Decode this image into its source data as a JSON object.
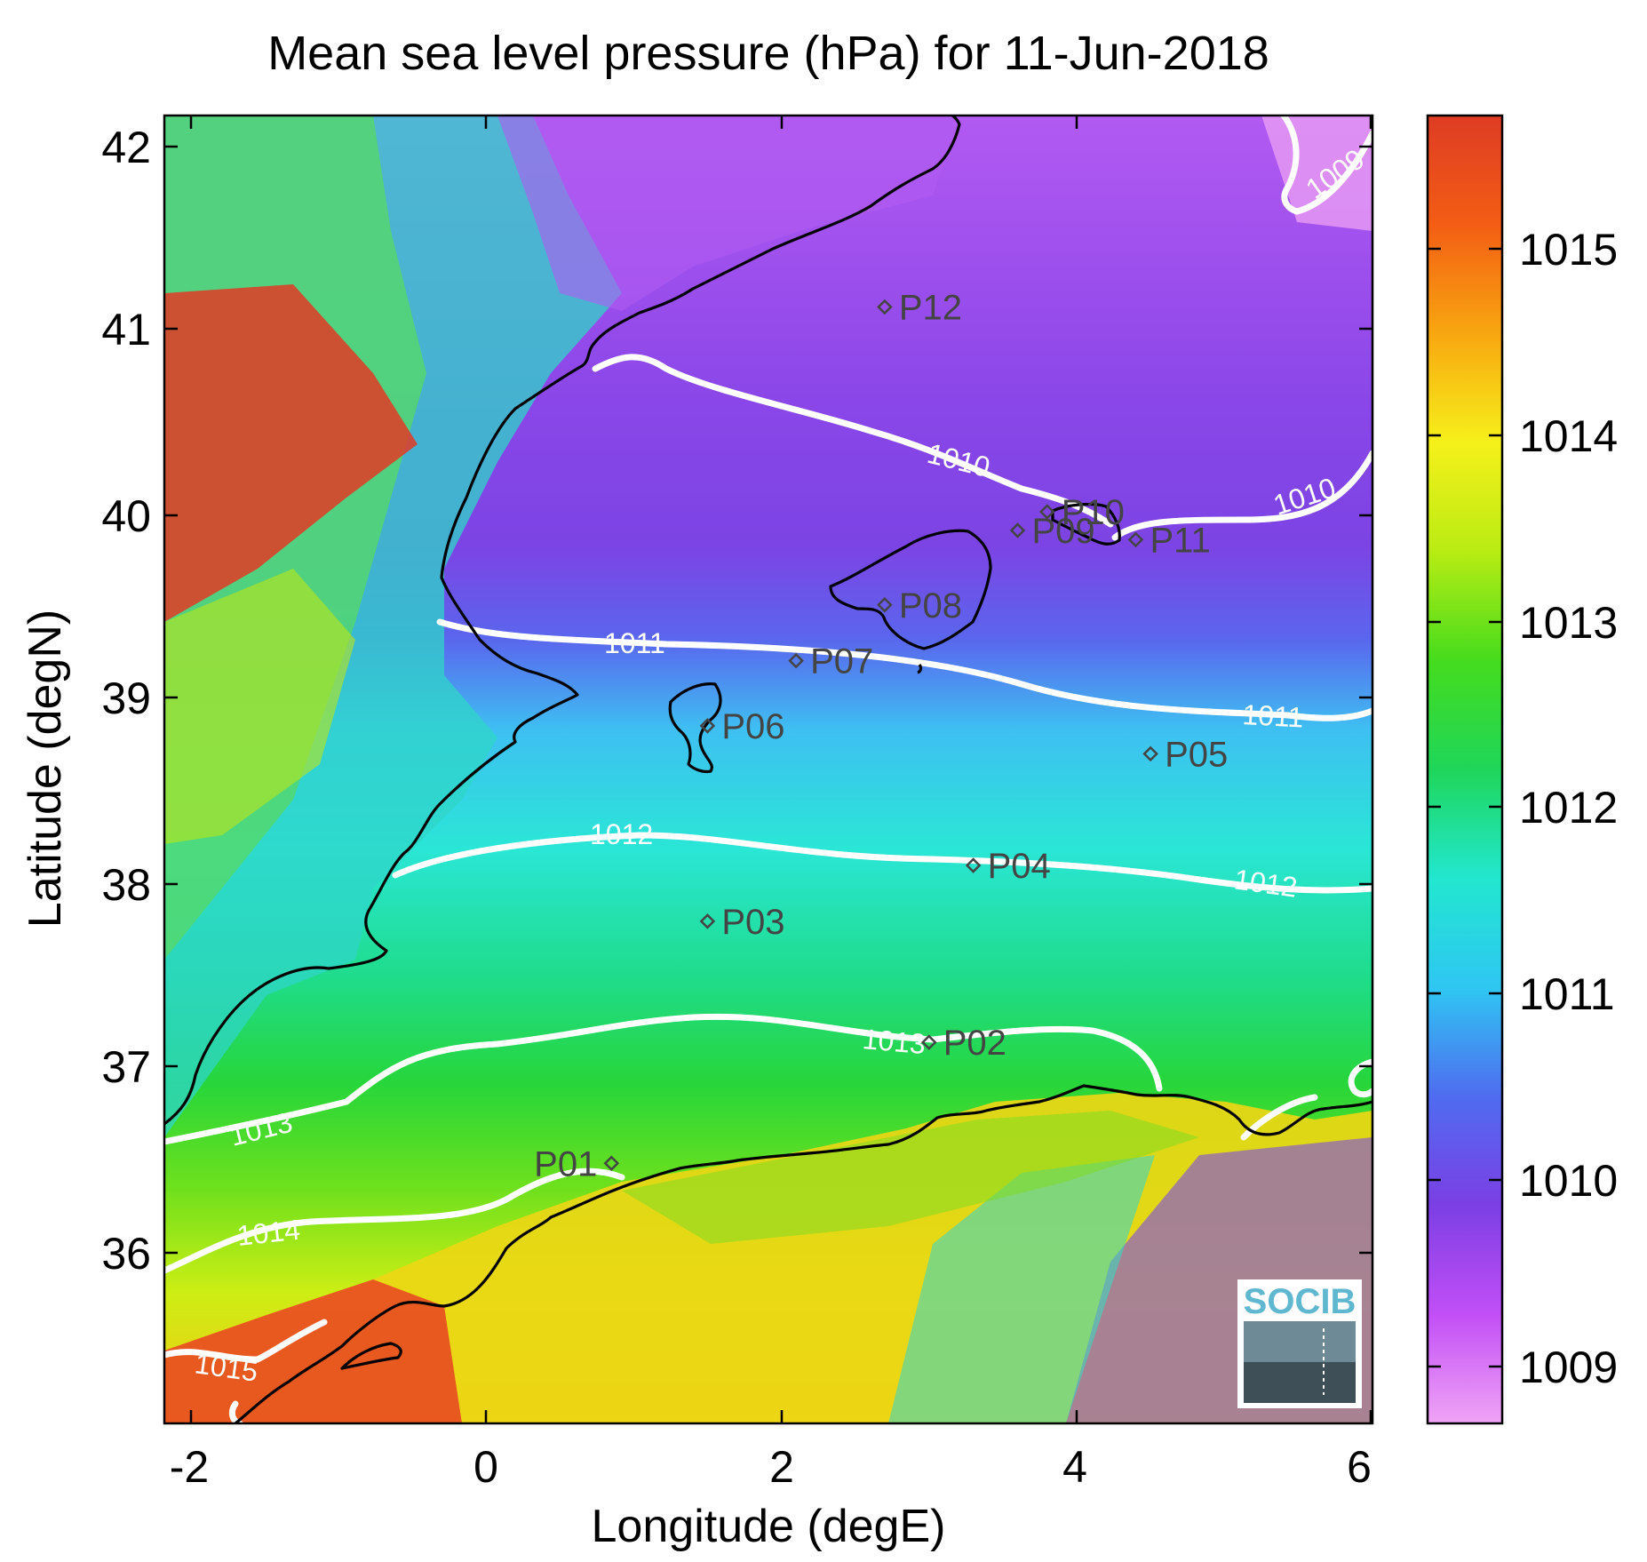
{
  "title": "Mean sea level pressure (hPa) for 11-Jun-2018",
  "xlabel": "Longitude (degE)",
  "ylabel": "Latitude (degN)",
  "x_ticks": [
    "-2",
    "0",
    "2",
    "4",
    "6"
  ],
  "y_ticks": [
    "42",
    "41",
    "40",
    "39",
    "38",
    "37",
    "36"
  ],
  "colorbar": {
    "ticks": [
      "1015",
      "1014",
      "1013",
      "1012",
      "1011",
      "1010",
      "1009"
    ],
    "range": [
      1008.7,
      1015.7
    ],
    "colormap": [
      "#f0a4f6",
      "#c24ff6",
      "#7b3fe4",
      "#4f6cf0",
      "#2fc6f2",
      "#22e7cf",
      "#1fd65a",
      "#45dc1d",
      "#b9ec13",
      "#f6f01a",
      "#f8a710",
      "#f35d14",
      "#de3c24"
    ]
  },
  "contour_labels": [
    "1009",
    "1010",
    "1010",
    "1011",
    "1011",
    "1012",
    "1012",
    "1013",
    "1013",
    "1014",
    "1015"
  ],
  "stations": [
    {
      "label": "P01",
      "lon": 0.85,
      "lat": 36.5
    },
    {
      "label": "P02",
      "lon": 3.0,
      "lat": 37.15
    },
    {
      "label": "P03",
      "lon": 1.5,
      "lat": 37.8
    },
    {
      "label": "P04",
      "lon": 3.3,
      "lat": 38.1
    },
    {
      "label": "P05",
      "lon": 4.5,
      "lat": 38.7
    },
    {
      "label": "P06",
      "lon": 1.5,
      "lat": 38.85
    },
    {
      "label": "P07",
      "lon": 2.1,
      "lat": 39.2
    },
    {
      "label": "P08",
      "lon": 2.7,
      "lat": 39.5
    },
    {
      "label": "P09",
      "lon": 3.6,
      "lat": 39.9
    },
    {
      "label": "P10",
      "lon": 3.8,
      "lat": 40.0
    },
    {
      "label": "P11",
      "lon": 4.4,
      "lat": 39.85
    },
    {
      "label": "P12",
      "lon": 2.7,
      "lat": 41.1
    }
  ],
  "logo": {
    "text": "SOCIB"
  }
}
